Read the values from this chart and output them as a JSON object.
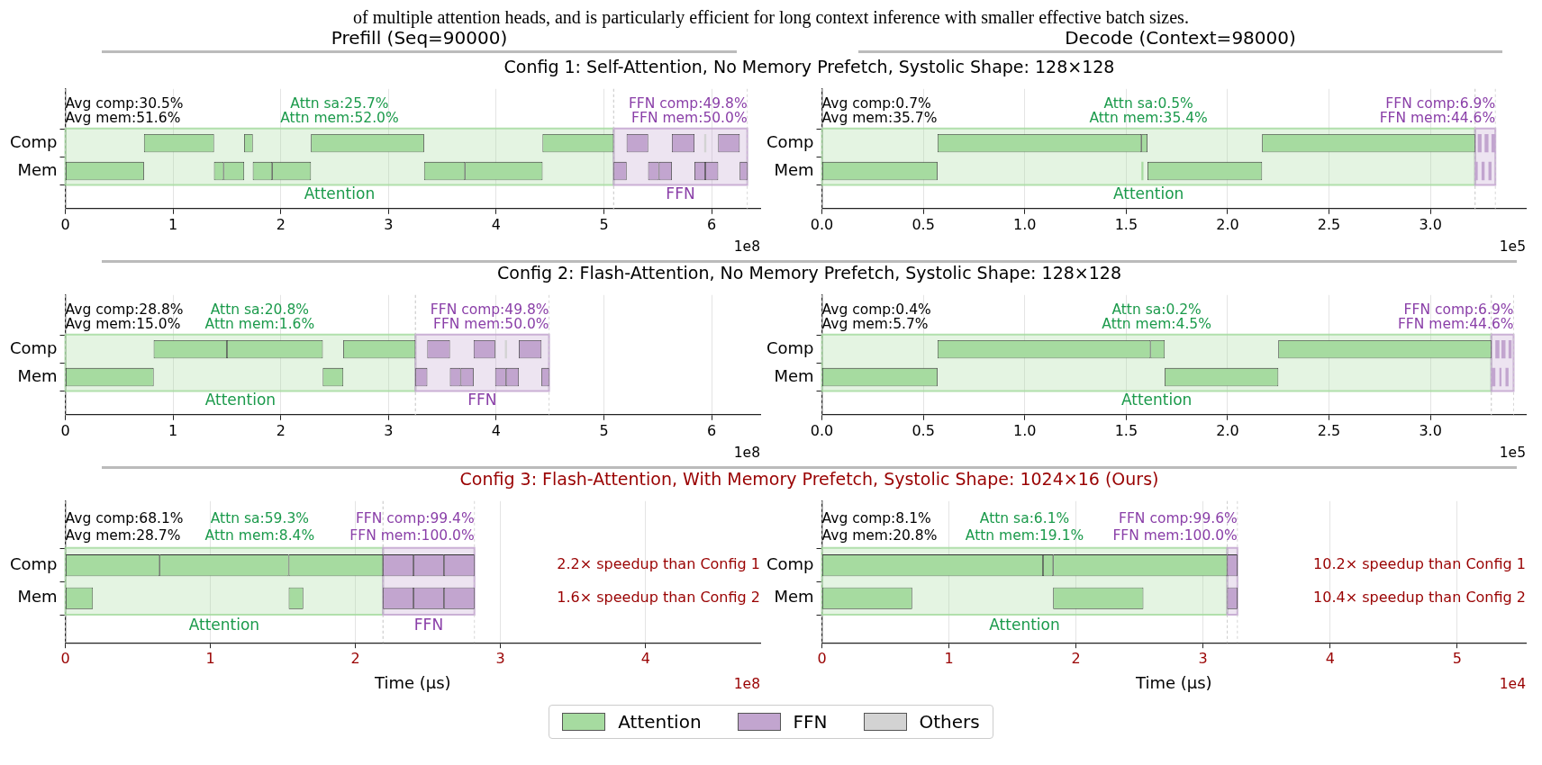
{
  "chart_data": [
    {
      "type": "bar",
      "orientation": "horizontal",
      "title": "Prefill (Seq=90000)",
      "subtitle": "Config 1: Self-Attention, No Memory Prefetch, Systolic Shape: 128×128",
      "categories": [
        "Comp",
        "Mem"
      ],
      "xlim": [
        0,
        6.45
      ],
      "xticks": [
        0,
        1,
        2,
        3,
        4,
        5,
        6
      ],
      "grid": "x",
      "legend": "bottom",
      "bands": [
        {
          "axis": "x",
          "from": 0,
          "to": 5.09,
          "label": "Attention",
          "color": "#a6dba0"
        },
        {
          "axis": "x",
          "from": 5.09,
          "to": 6.33,
          "label": "FFN",
          "color": "#c2a5cf"
        }
      ],
      "annotations": [
        "Avg comp:30.5%",
        "Avg mem:51.6%",
        "Attn sa:25.7%",
        "Attn mem:52.0%",
        "FFN comp:49.8%",
        "FFN mem:50.0%",
        "1e8",
        "of multiple attention heads, and is particularly efficient for long context inference with smaller effective batch sizes."
      ],
      "series": [
        {
          "name": "Attention",
          "color": "#a6dba0",
          "base": [
            0.73,
            0
          ],
          "values": [
            0.65,
            0.73
          ]
        },
        {
          "color": "#a6dba0",
          "base": [
            1.66,
            1.38
          ],
          "values": [
            0.08,
            0.09
          ]
        },
        {
          "color": "#a6dba0",
          "base": [
            2.28,
            1.47
          ],
          "values": [
            1.05,
            0.19
          ]
        },
        {
          "color": "#a6dba0",
          "base": [
            4.43,
            1.74
          ],
          "values": [
            0.66,
            0.18
          ]
        },
        {
          "color": "#a6dba0",
          "base": [
            null,
            1.92
          ],
          "values": [
            null,
            0.36
          ]
        },
        {
          "color": "#a6dba0",
          "base": [
            null,
            3.33
          ],
          "values": [
            null,
            0.38
          ]
        },
        {
          "color": "#a6dba0",
          "base": [
            null,
            3.71
          ],
          "values": [
            null,
            0.72
          ]
        },
        {
          "name": "FFN",
          "color": "#c2a5cf",
          "base": [
            5.21,
            5.09
          ],
          "values": [
            0.2,
            0.12
          ]
        },
        {
          "color": "#c2a5cf",
          "base": [
            5.63,
            5.41
          ],
          "values": [
            0.21,
            0.1
          ]
        },
        {
          "color": "#c2a5cf",
          "base": [
            6.06,
            5.51
          ],
          "values": [
            0.2,
            0.12
          ]
        },
        {
          "color": "#c2a5cf",
          "base": [
            null,
            5.84
          ],
          "values": [
            null,
            0.1
          ]
        },
        {
          "color": "#c2a5cf",
          "base": [
            null,
            5.94
          ],
          "values": [
            null,
            0.12
          ]
        },
        {
          "color": "#c2a5cf",
          "base": [
            null,
            6.26
          ],
          "values": [
            null,
            0.07
          ]
        },
        {
          "name": "Others",
          "color": "#d3d3d3",
          "base": [
            5.93,
            null
          ],
          "values": [
            0.02,
            null
          ]
        }
      ]
    },
    {
      "type": "bar",
      "orientation": "horizontal",
      "title": "Decode (Context=98000)",
      "categories": [
        "Comp",
        "Mem"
      ],
      "xlim": [
        0,
        3.47
      ],
      "xticks": [
        {
          "value": 0,
          "label": "0.0"
        },
        0.5,
        {
          "value": 1,
          "label": "1.0"
        },
        1.5,
        {
          "value": 2,
          "label": "2.0"
        },
        2.5,
        {
          "value": 3,
          "label": "3.0"
        }
      ],
      "grid": "x",
      "bands": [
        {
          "axis": "x",
          "from": 0,
          "to": 3.22,
          "label": "Attention",
          "color": "#a6dba0"
        },
        {
          "axis": "x",
          "from": 3.22,
          "to": 3.32,
          "label": null,
          "color": "#c2a5cf"
        }
      ],
      "annotations": [
        "Avg comp:0.7%",
        "Avg mem:35.7%",
        "Attn sa:0.5%",
        "Attn mem:35.4%",
        "FFN comp:6.9%",
        "FFN mem:44.6%",
        "1e5"
      ],
      "series": [
        {
          "color": "#a6dba0",
          "base": [
            0.57,
            0
          ],
          "values": [
            1.005,
            0.57
          ]
        },
        {
          "color": "#a6dba0",
          "base": [
            1.575,
            1.575
          ],
          "values": [
            0.03,
            0.01
          ]
        },
        {
          "color": "#a6dba0",
          "base": [
            2.17,
            1.605
          ],
          "values": [
            1.05,
            0.565
          ]
        },
        {
          "color": "#c2a5cf",
          "base": [
            3.233,
            3.22
          ],
          "values": [
            0.019,
            0.013
          ]
        },
        {
          "color": "#c2a5cf",
          "base": [
            3.267,
            3.252
          ],
          "values": [
            0.019,
            0.015
          ]
        },
        {
          "color": "#c2a5cf",
          "base": [
            3.301,
            3.286
          ],
          "values": [
            0.019,
            0.015
          ]
        }
      ]
    },
    {
      "type": "bar",
      "orientation": "horizontal",
      "subtitle": "Config 2: Flash-Attention, No Memory Prefetch, Systolic Shape: 128×128",
      "categories": [
        "Comp",
        "Mem"
      ],
      "xlim": [
        0,
        6.45
      ],
      "xticks": [
        0,
        1,
        2,
        3,
        4,
        5,
        6
      ],
      "grid": "x",
      "bands": [
        {
          "axis": "x",
          "from": 0,
          "to": 3.25,
          "label": "Attention",
          "color": "#a6dba0"
        },
        {
          "axis": "x",
          "from": 3.25,
          "to": 4.49,
          "label": "FFN",
          "color": "#c2a5cf"
        }
      ],
      "annotations": [
        "Avg comp:28.8%",
        "Avg mem:15.0%",
        "Attn sa:20.8%",
        "Attn mem:1.6%",
        "FFN comp:49.8%",
        "FFN mem:50.0%",
        "1e8"
      ],
      "series": [
        {
          "color": "#a6dba0",
          "base": [
            0.82,
            0
          ],
          "values": [
            0.68,
            0.82
          ]
        },
        {
          "color": "#a6dba0",
          "base": [
            1.5,
            2.39
          ],
          "values": [
            0.89,
            0.19
          ]
        },
        {
          "color": "#a6dba0",
          "base": [
            2.58,
            null
          ],
          "values": [
            0.67,
            null
          ]
        },
        {
          "color": "#c2a5cf",
          "base": [
            3.36,
            3.25
          ],
          "values": [
            0.21,
            0.11
          ]
        },
        {
          "color": "#c2a5cf",
          "base": [
            3.79,
            3.57
          ],
          "values": [
            0.2,
            0.1
          ]
        },
        {
          "color": "#c2a5cf",
          "base": [
            4.21,
            3.67
          ],
          "values": [
            0.21,
            0.12
          ]
        },
        {
          "color": "#c2a5cf",
          "base": [
            null,
            3.99
          ],
          "values": [
            null,
            0.1
          ]
        },
        {
          "color": "#c2a5cf",
          "base": [
            null,
            4.09
          ],
          "values": [
            null,
            0.12
          ]
        },
        {
          "color": "#c2a5cf",
          "base": [
            null,
            4.42
          ],
          "values": [
            null,
            0.07
          ]
        },
        {
          "color": "#d3d3d3",
          "base": [
            4.08,
            null
          ],
          "values": [
            0.02,
            null
          ]
        }
      ]
    },
    {
      "type": "bar",
      "orientation": "horizontal",
      "categories": [
        "Comp",
        "Mem"
      ],
      "xlim": [
        0,
        3.47
      ],
      "xticks": [
        {
          "value": 0,
          "label": "0.0"
        },
        0.5,
        {
          "value": 1,
          "label": "1.0"
        },
        1.5,
        {
          "value": 2,
          "label": "2.0"
        },
        2.5,
        {
          "value": 3,
          "label": "3.0"
        }
      ],
      "grid": "x",
      "bands": [
        {
          "axis": "x",
          "from": 0,
          "to": 3.3,
          "label": "Attention",
          "color": "#a6dba0"
        },
        {
          "axis": "x",
          "from": 3.3,
          "to": 3.41,
          "label": null,
          "color": "#c2a5cf"
        }
      ],
      "annotations": [
        "Avg comp:0.4%",
        "Avg mem:5.7%",
        "Attn sa:0.2%",
        "Attn mem:4.5%",
        "FFN comp:6.9%",
        "FFN mem:44.6%",
        "1e5"
      ],
      "series": [
        {
          "color": "#a6dba0",
          "base": [
            0.57,
            0
          ],
          "values": [
            1.05,
            0.57
          ]
        },
        {
          "color": "#a6dba0",
          "base": [
            1.62,
            1.69
          ],
          "values": [
            0.07,
            0.56
          ]
        },
        {
          "color": "#a6dba0",
          "base": [
            2.25,
            null
          ],
          "values": [
            1.05,
            null
          ]
        },
        {
          "color": "#c2a5cf",
          "base": [
            3.32,
            3.3
          ],
          "values": [
            0.02,
            0.02
          ]
        },
        {
          "color": "#c2a5cf",
          "base": [
            3.35,
            3.34
          ],
          "values": [
            0.02,
            0.01
          ]
        },
        {
          "color": "#c2a5cf",
          "base": [
            3.385,
            3.37
          ],
          "values": [
            0.015,
            0.015
          ]
        }
      ]
    },
    {
      "type": "bar",
      "orientation": "horizontal",
      "subtitle": "Config 3: Flash-Attention, With Memory Prefetch, Systolic Shape: 1024×16 (Ours)",
      "categories": [
        "Comp",
        "Mem"
      ],
      "xlim": [
        0,
        4.79
      ],
      "xticks": [
        0,
        1,
        2,
        3,
        4
      ],
      "grid": "x",
      "xlabel": "Time (µs)",
      "bands": [
        {
          "axis": "x",
          "from": 0,
          "to": 2.19,
          "label": "Attention",
          "color": "#a6dba0"
        },
        {
          "axis": "x",
          "from": 2.19,
          "to": 2.82,
          "label": "FFN",
          "color": "#c2a5cf"
        }
      ],
      "annotations": [
        "Avg comp:68.1%",
        "Avg mem:28.7%",
        "Attn sa:59.3%",
        "Attn mem:8.4%",
        "FFN comp:99.4%",
        "FFN mem:100.0%",
        "1e8",
        "2.2× speedup than Config 1",
        "1.6× speedup than Config 2"
      ],
      "series": [
        {
          "color": "#a6dba0",
          "base": [
            0,
            0
          ],
          "values": [
            0.65,
            0.19
          ]
        },
        {
          "color": "#a6dba0",
          "base": [
            0.65,
            1.54
          ],
          "values": [
            0.89,
            0.1
          ]
        },
        {
          "color": "#a6dba0",
          "base": [
            1.54,
            null
          ],
          "values": [
            0.65,
            null
          ]
        },
        {
          "color": "#c2a5cf",
          "base": [
            2.19,
            2.19
          ],
          "values": [
            0.21,
            0.21
          ]
        },
        {
          "color": "#c2a5cf",
          "base": [
            2.4,
            2.4
          ],
          "values": [
            0.21,
            0.21
          ]
        },
        {
          "color": "#c2a5cf",
          "base": [
            2.61,
            2.61
          ],
          "values": [
            0.21,
            0.21
          ]
        }
      ]
    },
    {
      "type": "bar",
      "orientation": "horizontal",
      "categories": [
        "Comp",
        "Mem"
      ],
      "xlim": [
        0,
        5.54
      ],
      "xticks": [
        0,
        1,
        2,
        3,
        4,
        5
      ],
      "grid": "x",
      "xlabel": "Time (µs)",
      "bands": [
        {
          "axis": "x",
          "from": 0,
          "to": 3.19,
          "label": "Attention",
          "color": "#a6dba0"
        },
        {
          "axis": "x",
          "from": 3.19,
          "to": 3.27,
          "label": null,
          "color": "#c2a5cf"
        }
      ],
      "annotations": [
        "Avg comp:8.1%",
        "Avg mem:20.8%",
        "Attn sa:6.1%",
        "Attn mem:19.1%",
        "FFN comp:99.6%",
        "FFN mem:100.0%",
        "1e4",
        "10.2× speedup than Config 1",
        "10.4× speedup than Config 2"
      ],
      "series": [
        {
          "color": "#a6dba0",
          "base": [
            0,
            0
          ],
          "values": [
            1.74,
            0.71
          ]
        },
        {
          "color": "#a6dba0",
          "base": [
            1.74,
            1.82
          ],
          "values": [
            0.08,
            0.71
          ]
        },
        {
          "color": "#a6dba0",
          "base": [
            1.82,
            null
          ],
          "values": [
            1.37,
            null
          ]
        },
        {
          "color": "#c2a5cf",
          "base": [
            3.19,
            3.19
          ],
          "values": [
            0.08,
            0.08
          ]
        }
      ]
    }
  ]
}
